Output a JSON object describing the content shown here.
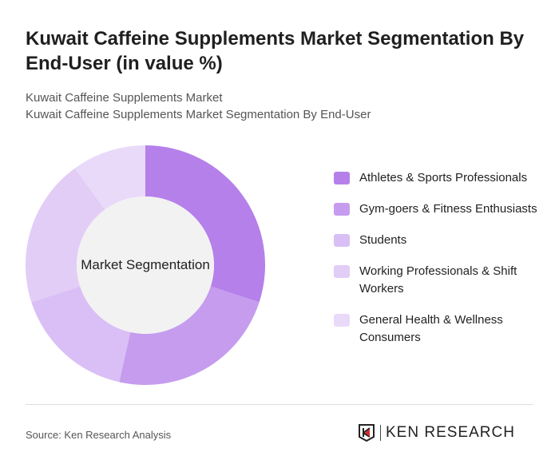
{
  "header": {
    "title": "Kuwait Caffeine Supplements Market Segmentation By End-User (in value %)",
    "subtitle_1": "Kuwait Caffeine Supplements Market",
    "subtitle_2": "Kuwait Caffeine Supplements Market Segmentation By End-User"
  },
  "chart_data": {
    "type": "pie",
    "variant": "donut",
    "title": "Kuwait Caffeine Supplements Market Segmentation By End-User (in value %)",
    "center_label": "Market Segmentation",
    "categories": [
      "Athletes & Sports Professionals",
      "Gym-goers & Fitness Enthusiasts",
      "Students",
      "Working Professionals & Shift Workers",
      "General Health & Wellness Consumers"
    ],
    "values": [
      30,
      23.5,
      16.5,
      20,
      10
    ],
    "colors": [
      "#b580ea",
      "#c69cee",
      "#d9bff5",
      "#e2cdf6",
      "#e9daf9"
    ],
    "legend_position": "right"
  },
  "legend": {
    "items": [
      {
        "label": "Athletes & Sports Professionals",
        "color": "#b580ea"
      },
      {
        "label": "Gym-goers & Fitness Enthusiasts",
        "color": "#c69cee"
      },
      {
        "label": "Students",
        "color": "#d9bff5"
      },
      {
        "label": "Working Professionals & Shift Workers",
        "color": "#e2cdf6"
      },
      {
        "label": "General Health & Wellness Consumers",
        "color": "#e9daf9"
      }
    ]
  },
  "footer": {
    "source": "Source: Ken Research Analysis",
    "logo_text": "KEN RESEARCH"
  }
}
